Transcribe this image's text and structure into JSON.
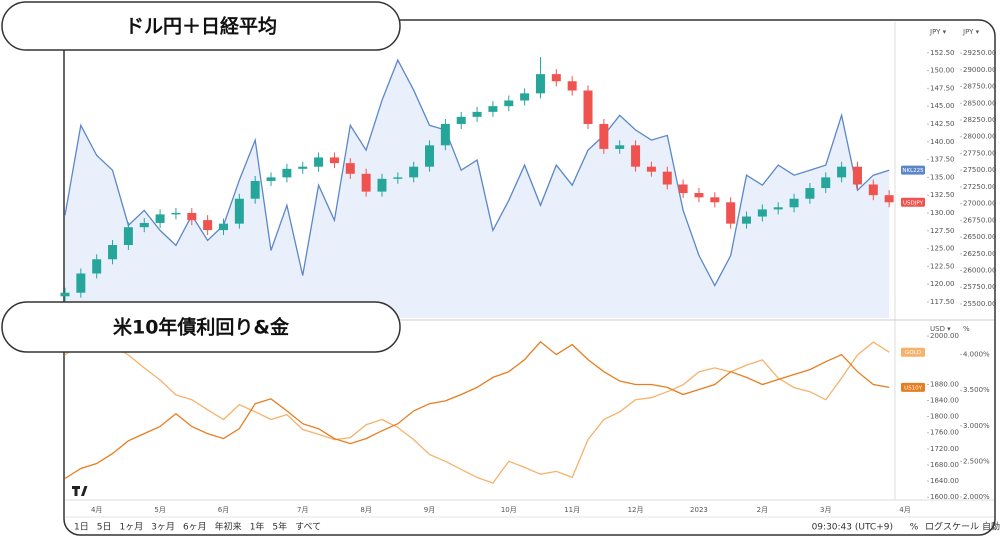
{
  "chart_data": [
    {
      "type": "candlestick",
      "title": "ドル円＋日経平均",
      "y_label": "JPY ▾",
      "y2_label": "JPY ▾",
      "ylim": [
        115.25,
        156.4
      ],
      "yticks": [
        {
          "value": 117.5,
          "label": "117.50"
        },
        {
          "value": 120,
          "label": "120.00"
        },
        {
          "value": 122.5,
          "label": "122.50"
        },
        {
          "value": 125,
          "label": "125.00"
        },
        {
          "value": 127.5,
          "label": "127.50"
        },
        {
          "value": 130,
          "label": "130.00"
        },
        {
          "value": 132.5,
          "label": "132.50"
        },
        {
          "value": 135,
          "label": "135.00"
        },
        {
          "value": 137.5,
          "label": "137.50"
        },
        {
          "value": 140,
          "label": "140.00"
        },
        {
          "value": 142.5,
          "label": "142.50"
        },
        {
          "value": 145,
          "label": "145.00"
        },
        {
          "value": 147.5,
          "label": "147.50"
        },
        {
          "value": 150,
          "label": "150.00"
        },
        {
          "value": 152.5,
          "label": "152.50"
        }
      ],
      "y2lim": [
        25290,
        29670
      ],
      "y2ticks": [
        {
          "value": 25500,
          "label": "25500.00"
        },
        {
          "value": 25750,
          "label": "25750.00"
        },
        {
          "value": 26000,
          "label": "26000.00"
        },
        {
          "value": 26250,
          "label": "26250.00"
        },
        {
          "value": 26500,
          "label": "26500.00"
        },
        {
          "value": 26750,
          "label": "26750.00"
        },
        {
          "value": 27000,
          "label": "27000.00"
        },
        {
          "value": 27250,
          "label": "27250.00"
        },
        {
          "value": 27500,
          "label": "27500.00"
        },
        {
          "value": 27750,
          "label": "27750.00"
        },
        {
          "value": 28000,
          "label": "28000.00"
        },
        {
          "value": 28250,
          "label": "28250.00"
        },
        {
          "value": 28500,
          "label": "28500.00"
        },
        {
          "value": 28750,
          "label": "28750.00"
        },
        {
          "value": 29000,
          "label": "29000.00"
        },
        {
          "value": 29250,
          "label": "29250.00"
        }
      ],
      "series": [
        {
          "name": "NKL225",
          "type": "area",
          "axis": "y2",
          "color": "#5b87c9",
          "fill_color": "#e9f0fb",
          "values": [
            26825,
            28170,
            27720,
            27500,
            26675,
            26900,
            26600,
            26375,
            26825,
            26450,
            26675,
            27350,
            27950,
            26300,
            26975,
            25925,
            27275,
            26750,
            28170,
            27800,
            28545,
            29145,
            28695,
            28170,
            28100,
            27500,
            27650,
            26600,
            27050,
            27575,
            26975,
            27575,
            27275,
            27800,
            28020,
            28320,
            28100,
            27950,
            28020,
            26900,
            26225,
            25775,
            26225,
            27425,
            27275,
            27575,
            27425,
            27500,
            27575,
            28320,
            27200,
            27425,
            27500,
            null
          ]
        },
        {
          "name": "USDJPY",
          "type": "candlestick",
          "color": "#ef5350",
          "up_color": "#26a69a",
          "down_color": "#ef5350",
          "open": [
            118.3,
            118.8,
            121.5,
            123.5,
            125.5,
            128.0,
            128.6,
            129.8,
            130.0,
            129.0,
            127.6,
            128.5,
            132.0,
            134.5,
            135.0,
            136.2,
            136.5,
            137.8,
            137.0,
            135.5,
            133.0,
            134.8,
            135.0,
            136.5,
            139.5,
            142.5,
            143.5,
            144.2,
            145.0,
            145.8,
            146.8,
            149.5,
            148.5,
            147.2,
            142.5,
            139.0,
            139.5,
            136.5,
            135.8,
            134.0,
            132.8,
            132.2,
            131.5,
            128.5,
            129.5,
            130.5,
            130.8,
            132.0,
            133.5,
            135.0,
            136.5,
            134.0,
            132.5,
            null
          ],
          "high": [
            119.5,
            122.2,
            124.2,
            126.2,
            128.7,
            129.3,
            130.5,
            130.7,
            130.7,
            129.7,
            129.2,
            132.7,
            135.2,
            135.7,
            136.9,
            137.2,
            138.5,
            138.5,
            137.7,
            136.2,
            135.5,
            135.7,
            137.2,
            140.2,
            143.2,
            144.2,
            144.9,
            145.7,
            146.5,
            147.5,
            151.9,
            150.2,
            149.2,
            147.9,
            143.2,
            140.2,
            140.2,
            137.2,
            136.5,
            134.7,
            133.5,
            132.9,
            132.2,
            130.2,
            131.2,
            131.5,
            132.7,
            134.2,
            135.7,
            137.2,
            137.2,
            134.7,
            133.2,
            null
          ],
          "low": [
            117.6,
            118.1,
            120.8,
            122.8,
            124.8,
            127.3,
            127.9,
            129.1,
            128.3,
            126.9,
            126.9,
            127.8,
            131.3,
            133.8,
            134.3,
            135.5,
            135.8,
            136.3,
            134.8,
            132.3,
            132.3,
            134.1,
            134.3,
            135.8,
            138.8,
            141.8,
            142.8,
            143.5,
            144.3,
            145.1,
            146.1,
            147.8,
            146.5,
            141.8,
            138.3,
            138.3,
            135.8,
            135.1,
            133.3,
            132.1,
            131.5,
            130.8,
            127.8,
            127.8,
            128.8,
            129.8,
            130.1,
            131.3,
            132.8,
            134.3,
            133.3,
            131.8,
            130.8,
            null
          ],
          "close": [
            118.8,
            121.5,
            123.5,
            125.5,
            128.0,
            128.6,
            129.8,
            130.0,
            129.0,
            127.6,
            128.5,
            132.0,
            134.5,
            135.0,
            136.2,
            136.5,
            137.8,
            137.0,
            135.5,
            133.0,
            134.8,
            135.0,
            136.5,
            139.5,
            142.5,
            143.5,
            144.2,
            145.0,
            145.8,
            146.8,
            149.5,
            148.5,
            147.2,
            142.5,
            139.0,
            139.5,
            136.5,
            135.8,
            134.0,
            132.8,
            132.2,
            131.5,
            128.5,
            129.5,
            130.5,
            130.8,
            132.0,
            133.5,
            135.0,
            136.5,
            134.0,
            132.5,
            131.5,
            null
          ]
        }
      ]
    },
    {
      "type": "line",
      "title": "米10年債利回り&金",
      "y_label": "USD ▾",
      "y2_label": "%",
      "categories": [
        null,
        null,
        "4月",
        null,
        null,
        null,
        "5月",
        null,
        null,
        null,
        "6月",
        null,
        null,
        null,
        null,
        "7月",
        null,
        null,
        null,
        "8月",
        null,
        null,
        null,
        "9月",
        null,
        null,
        null,
        null,
        "10月",
        null,
        null,
        null,
        "11月",
        null,
        null,
        null,
        "12月",
        null,
        null,
        null,
        "2023",
        null,
        null,
        null,
        "2月",
        null,
        null,
        null,
        "3月",
        null,
        null,
        null,
        null,
        "4月"
      ],
      "ylim": [
        1593,
        2035
      ],
      "yticks": [
        {
          "value": 1600,
          "label": "1600.00"
        },
        {
          "value": 1640,
          "label": "1640.00"
        },
        {
          "value": 1680,
          "label": "1680.00"
        },
        {
          "value": 1720,
          "label": "1720.00"
        },
        {
          "value": 1760,
          "label": "1760.00"
        },
        {
          "value": 1800,
          "label": "1800.00"
        },
        {
          "value": 1840,
          "label": "1840.00"
        },
        {
          "value": 1880,
          "label": "1880.00"
        },
        {
          "value": 2000,
          "label": "2000.00"
        }
      ],
      "y2lim": [
        1.958,
        4.458
      ],
      "y2ticks": [
        {
          "value": 2,
          "label": "2.000%"
        },
        {
          "value": 2.5,
          "label": "2.500%"
        },
        {
          "value": 3,
          "label": "3.000%"
        },
        {
          "value": 3.5,
          "label": "3.500%"
        },
        {
          "value": 4,
          "label": "4.000%"
        }
      ],
      "series": [
        {
          "name": "GOLD",
          "color": "#f6b26b",
          "values": [
            1953,
            1985,
            1970,
            1978,
            1953,
            1921,
            1891,
            1854,
            1842,
            1817,
            1793,
            1830,
            1812,
            1793,
            1805,
            1768,
            1756,
            1743,
            1748,
            1780,
            1793,
            1773,
            1743,
            1706,
            1689,
            1669,
            1649,
            1635,
            1689,
            1674,
            1657,
            1664,
            1649,
            1743,
            1793,
            1812,
            1842,
            1847,
            1862,
            1879,
            1911,
            1921,
            1911,
            1928,
            1941,
            1896,
            1872,
            1862,
            1842,
            1896,
            1953,
            1985,
            1960,
            null
          ]
        },
        {
          "name": "US10Y",
          "axis": "y2",
          "color": "#e67e22",
          "values": [
            2.26,
            2.4,
            2.47,
            2.61,
            2.79,
            2.89,
            2.99,
            3.17,
            2.99,
            2.89,
            2.82,
            2.96,
            3.31,
            3.38,
            3.21,
            3.03,
            2.96,
            2.82,
            2.75,
            2.82,
            2.93,
            3.03,
            3.21,
            3.31,
            3.35,
            3.44,
            3.54,
            3.68,
            3.76,
            3.93,
            4.18,
            4.0,
            4.14,
            3.93,
            3.76,
            3.63,
            3.58,
            3.58,
            3.54,
            3.44,
            3.51,
            3.58,
            3.76,
            3.68,
            3.58,
            3.65,
            3.72,
            3.79,
            3.9,
            4.0,
            3.76,
            3.58,
            3.54,
            null
          ]
        }
      ]
    }
  ],
  "toolbar": {
    "ranges": [
      "1日",
      "5日",
      "1ヶ月",
      "3ヶ月",
      "6ヶ月",
      "年初来",
      "1年",
      "5年",
      "すべて"
    ],
    "clock": "09:30:43 (UTC+9)",
    "percent": "%",
    "log": "ログスケール",
    "auto": "自動"
  }
}
